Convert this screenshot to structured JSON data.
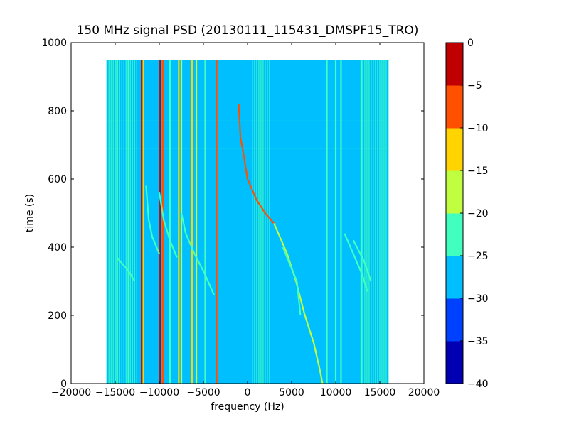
{
  "chart_data": {
    "type": "heatmap",
    "title": "150 MHz signal PSD (20130111_115431_DMSPF15_TRO)",
    "xlabel": "frequency (Hz)",
    "ylabel": "time (s)",
    "xlim": [
      -20000,
      20000
    ],
    "ylim": [
      0,
      1000
    ],
    "x_ticks": [
      -20000,
      -15000,
      -10000,
      -5000,
      0,
      5000,
      10000,
      15000,
      20000
    ],
    "x_tick_labels": [
      "−20000",
      "−15000",
      "−10000",
      "−5000",
      "0",
      "5000",
      "10000",
      "15000",
      "20000"
    ],
    "y_ticks": [
      0,
      200,
      400,
      600,
      800,
      1000
    ],
    "y_tick_labels": [
      "0",
      "200",
      "400",
      "600",
      "800",
      "1000"
    ],
    "data_extent": {
      "x": [
        -16000,
        16000
      ],
      "y": [
        0,
        948
      ]
    },
    "background_level_db": -27,
    "colorbar": {
      "levels": [
        -40,
        -35,
        -30,
        -25,
        -20,
        -15,
        -10,
        -5,
        0
      ],
      "tick_labels": [
        "−40",
        "−35",
        "−30",
        "−25",
        "−20",
        "−15",
        "−10",
        "−5",
        "0"
      ],
      "colors": [
        "#0000b2",
        "#0040ff",
        "#00bfff",
        "#40ffbf",
        "#bfff40",
        "#ffd400",
        "#ff5000",
        "#c00000"
      ]
    },
    "vertical_lines": [
      {
        "x": -12000,
        "level_db": -5
      },
      {
        "x": -11800,
        "level_db": -12
      },
      {
        "x": -9900,
        "level_db": -2
      },
      {
        "x": -9600,
        "level_db": -10
      },
      {
        "x": -7800,
        "level_db": -12
      },
      {
        "x": -7500,
        "level_db": -18
      },
      {
        "x": -6300,
        "level_db": -12
      },
      {
        "x": -5800,
        "level_db": -18
      },
      {
        "x": -3500,
        "level_db": -10
      },
      {
        "x": -14800,
        "level_db": -22
      },
      {
        "x": -13500,
        "level_db": -22
      },
      {
        "x": -8800,
        "level_db": -22
      },
      {
        "x": -4800,
        "level_db": -22
      },
      {
        "x": 9000,
        "level_db": -22
      },
      {
        "x": 10000,
        "level_db": -22
      },
      {
        "x": 10600,
        "level_db": -22
      },
      {
        "x": 12900,
        "level_db": -22
      }
    ],
    "bands": [
      {
        "x": [
          -16000,
          -12500
        ],
        "level_db": -24
      },
      {
        "x": [
          500,
          2600
        ],
        "level_db": -24
      },
      {
        "x": [
          13000,
          16000
        ],
        "level_db": -24
      }
    ],
    "curves": [
      {
        "level_db": -8,
        "points": [
          [
            -1000,
            820
          ],
          [
            -800,
            720
          ],
          [
            -500,
            680
          ],
          [
            0,
            600
          ],
          [
            1000,
            540
          ],
          [
            2000,
            500
          ],
          [
            3000,
            470
          ]
        ]
      },
      {
        "level_db": -20,
        "points": [
          [
            3000,
            470
          ],
          [
            3500,
            440
          ],
          [
            4500,
            380
          ],
          [
            5500,
            300
          ],
          [
            6500,
            200
          ],
          [
            7500,
            120
          ],
          [
            8200,
            40
          ],
          [
            8500,
            0
          ]
        ]
      },
      {
        "level_db": -22,
        "points": [
          [
            -11500,
            580
          ],
          [
            -11200,
            480
          ],
          [
            -10800,
            430
          ],
          [
            -10000,
            380
          ]
        ]
      },
      {
        "level_db": -22,
        "points": [
          [
            -10000,
            560
          ],
          [
            -9500,
            480
          ],
          [
            -8800,
            420
          ],
          [
            -8000,
            370
          ]
        ]
      },
      {
        "level_db": -22,
        "points": [
          [
            -7500,
            500
          ],
          [
            -7000,
            440
          ],
          [
            -6000,
            380
          ],
          [
            -5000,
            330
          ],
          [
            -3800,
            260
          ]
        ]
      },
      {
        "level_db": -22,
        "points": [
          [
            -14800,
            370
          ],
          [
            -13500,
            330
          ],
          [
            -12800,
            300
          ]
        ]
      },
      {
        "level_db": -22,
        "points": [
          [
            4000,
            400
          ],
          [
            4800,
            350
          ],
          [
            5600,
            300
          ],
          [
            6000,
            200
          ]
        ]
      },
      {
        "level_db": -22,
        "points": [
          [
            11000,
            440
          ],
          [
            12000,
            380
          ],
          [
            13000,
            320
          ],
          [
            13600,
            270
          ]
        ]
      },
      {
        "level_db": -22,
        "points": [
          [
            12000,
            420
          ],
          [
            13200,
            360
          ],
          [
            14000,
            300
          ]
        ]
      }
    ],
    "horizontal_lines": [
      {
        "y": 770,
        "level_db": -22
      },
      {
        "y": 690,
        "level_db": -22
      }
    ]
  }
}
